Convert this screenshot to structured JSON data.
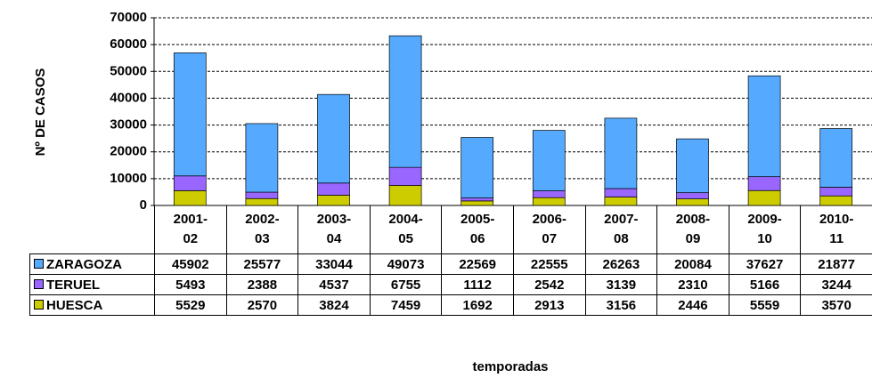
{
  "chart_data": {
    "type": "bar",
    "stacked": true,
    "y_label": "Nº DE CASOS",
    "x_label": "temporadas",
    "categories": [
      "2001-02",
      "2002-03",
      "2003-04",
      "2004-05",
      "2005-06",
      "2006-07",
      "2007-08",
      "2008-09",
      "2009-10",
      "2010-11"
    ],
    "series": [
      {
        "name": "HUESCA",
        "color": "#cccc00",
        "values": [
          5529,
          2570,
          3824,
          7459,
          1692,
          2913,
          3156,
          2446,
          5559,
          3570
        ]
      },
      {
        "name": "TERUEL",
        "color": "#9966ff",
        "values": [
          5493,
          2388,
          4537,
          6755,
          1112,
          2542,
          3139,
          2310,
          5166,
          3244
        ]
      },
      {
        "name": "ZARAGOZA",
        "color": "#55aaff",
        "values": [
          45902,
          25577,
          33044,
          49073,
          22569,
          22555,
          26263,
          20084,
          37627,
          21877
        ]
      }
    ],
    "ylim": [
      0,
      70000
    ],
    "yticks": [
      0,
      10000,
      20000,
      30000,
      40000,
      50000,
      60000,
      70000
    ],
    "grid": true
  }
}
